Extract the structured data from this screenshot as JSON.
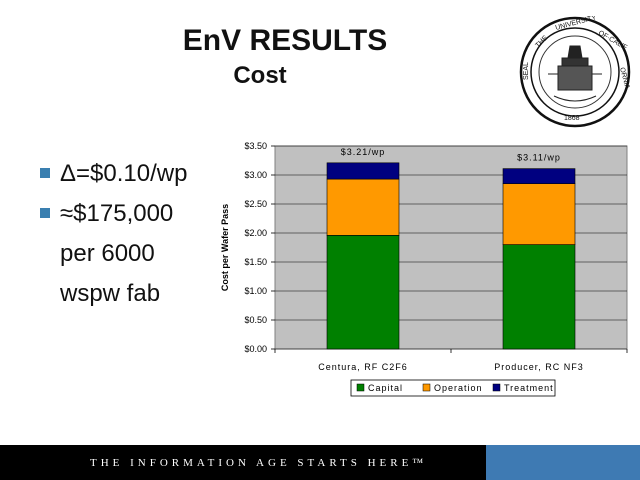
{
  "slide": {
    "title": "EnV RESULTS",
    "subtitle": "Cost",
    "footer_text": "THE INFORMATION AGE STARTS HERE™",
    "seal_label": "THE UNIVERSITY OF CALIFORNIA 1868",
    "bullets": [
      {
        "icon": "square-bullet-icon",
        "lines": [
          "Δ=$0.10/wp"
        ]
      },
      {
        "icon": "square-bullet-icon",
        "lines": [
          "≈$175,000",
          "per 6000",
          "wspw fab"
        ]
      }
    ],
    "colors": {
      "bullet": "#3a7fb0",
      "footer_bar": "#000000",
      "footer_accent": "#3e7ab3"
    }
  },
  "chart_data": {
    "type": "bar",
    "stacked": true,
    "categories": [
      "Centura, RF C2F6",
      "Producer, RC NF3"
    ],
    "series": [
      {
        "name": "Capital",
        "color": "#008000",
        "values": [
          1.96,
          1.8
        ]
      },
      {
        "name": "Operation",
        "color": "#ff9900",
        "values": [
          0.97,
          1.05
        ]
      },
      {
        "name": "Treatment",
        "color": "#000080",
        "values": [
          0.28,
          0.26
        ]
      }
    ],
    "totals_labels": [
      "$3.21/wp",
      "$3.11/wp"
    ],
    "ylabel": "Cost per Wafer Pass",
    "xlabel": "",
    "ylim": [
      0,
      3.5
    ],
    "yticks": [
      "$0.00",
      "$0.50",
      "$1.00",
      "$1.50",
      "$2.00",
      "$2.50",
      "$3.00",
      "$3.50"
    ],
    "grid": true,
    "plot_background": "#c0c0c0",
    "legend": "bottom"
  }
}
